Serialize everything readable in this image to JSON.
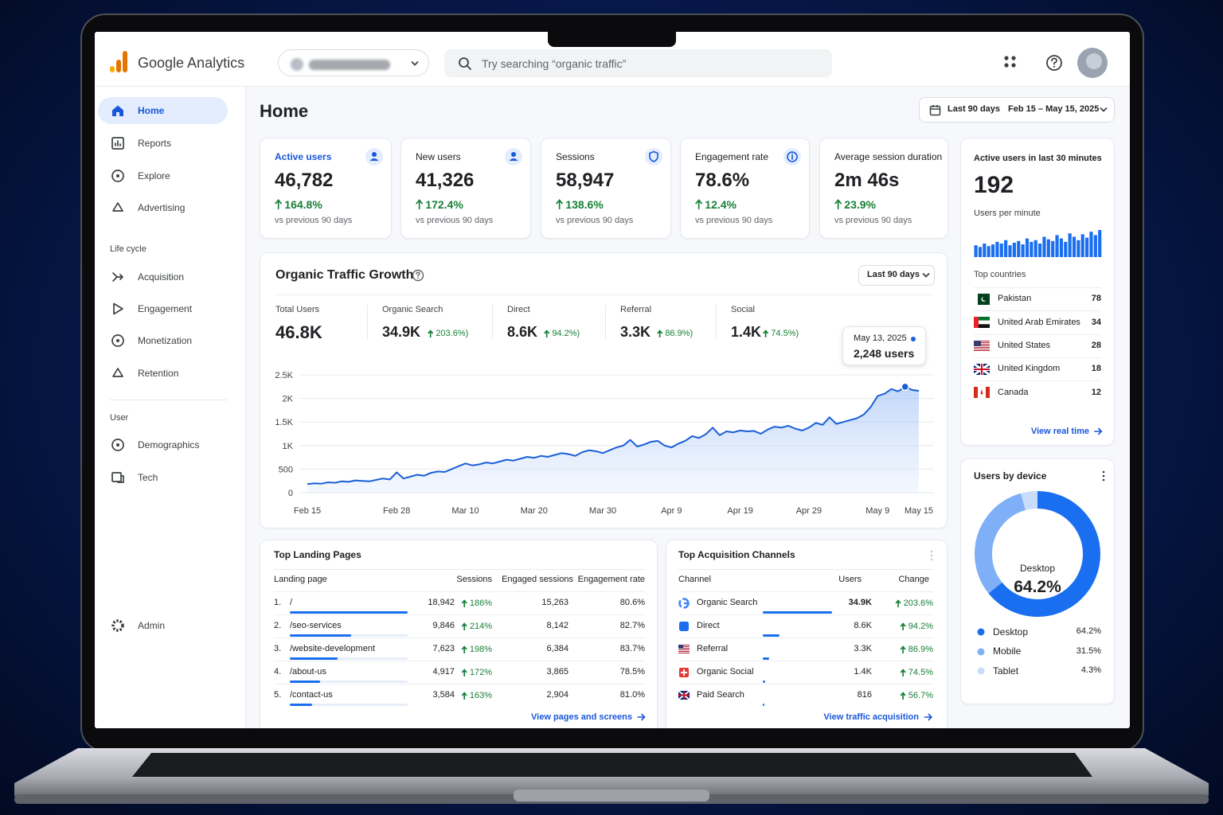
{
  "header": {
    "product": "Google Analytics",
    "search_placeholder": "Try searching “organic traffic”"
  },
  "sidebar": {
    "main": [
      "Home",
      "Reports",
      "Explore",
      "Advertising"
    ],
    "lifecycle_title": "Life cycle",
    "lifecycle": [
      "Acquisition",
      "Engagement",
      "Monetization",
      "Retention"
    ],
    "user_title": "User",
    "user": [
      "Demographics",
      "Tech"
    ],
    "admin": "Admin"
  },
  "page": {
    "title": "Home",
    "date_range": {
      "preset": "Last 90 days",
      "range": "Feb 15 – May 15, 2025"
    }
  },
  "kpis": [
    {
      "title": "Active users",
      "value": "46,782",
      "change": "164.8%",
      "note": "vs previous 90 days"
    },
    {
      "title": "New users",
      "value": "41,326",
      "change": "172.4%",
      "note": "vs previous 90 days"
    },
    {
      "title": "Sessions",
      "value": "58,947",
      "change": "138.6%",
      "note": "vs previous 90 days"
    },
    {
      "title": "Engagement rate",
      "value": "78.6%",
      "change": "12.4%",
      "note": "vs previous 90 days"
    },
    {
      "title": "Average session duration",
      "value": "2m 46s",
      "change": "23.9%",
      "note": "vs previous 90 days"
    }
  ],
  "traffic": {
    "title": "Organic Traffic Growth",
    "period": "Last 90 days",
    "metrics": [
      {
        "label": "Total Users",
        "value": "46.8K"
      },
      {
        "label": "Organic Search",
        "value": "34.9K",
        "change": "203.6%)"
      },
      {
        "label": "Direct",
        "value": "8.6K",
        "change": "94.2%)"
      },
      {
        "label": "Referral",
        "value": "3.3K",
        "change": "86.9%)"
      },
      {
        "label": "Social",
        "value": "1.4K",
        "change": "74.5%)"
      }
    ],
    "tooltip": {
      "date": "May 13, 2025",
      "label": "2,248 users"
    },
    "chart_data": {
      "type": "line",
      "categories": [
        "Feb 15",
        null,
        null,
        null,
        null,
        null,
        null,
        null,
        null,
        null,
        null,
        null,
        null,
        "Feb 28",
        null,
        null,
        null,
        null,
        null,
        null,
        null,
        null,
        null,
        "Mar 10",
        null,
        null,
        null,
        null,
        null,
        null,
        null,
        null,
        null,
        "Mar 20",
        null,
        null,
        null,
        null,
        null,
        null,
        null,
        null,
        null,
        "Mar 30",
        null,
        null,
        null,
        null,
        null,
        null,
        null,
        null,
        null,
        "Apr 9",
        null,
        null,
        null,
        null,
        null,
        null,
        null,
        null,
        null,
        "Apr 19",
        null,
        null,
        null,
        null,
        null,
        null,
        null,
        null,
        null,
        "Apr 29",
        null,
        null,
        null,
        null,
        null,
        null,
        null,
        null,
        null,
        "May 9",
        null,
        null,
        null,
        null,
        null,
        "May 15"
      ],
      "values": [
        180,
        200,
        190,
        220,
        210,
        240,
        230,
        260,
        250,
        240,
        270,
        300,
        280,
        430,
        300,
        340,
        380,
        360,
        420,
        450,
        440,
        500,
        560,
        620,
        580,
        600,
        640,
        620,
        660,
        700,
        680,
        720,
        760,
        740,
        780,
        760,
        800,
        840,
        820,
        780,
        860,
        900,
        880,
        840,
        900,
        960,
        1000,
        1120,
        980,
        1020,
        1080,
        1100,
        1000,
        960,
        1040,
        1100,
        1200,
        1160,
        1240,
        1380,
        1220,
        1300,
        1280,
        1320,
        1300,
        1310,
        1250,
        1340,
        1400,
        1380,
        1420,
        1360,
        1320,
        1380,
        1480,
        1440,
        1600,
        1460,
        1500,
        1540,
        1580,
        1660,
        1820,
        2050,
        2100,
        2200,
        2150,
        2248,
        2180,
        2160
      ],
      "color": "#1a5fd8",
      "ylim": [
        0,
        2500
      ],
      "yticks": [
        0,
        500,
        {
          "value": 1000,
          "label": "1K"
        },
        {
          "value": 1500,
          "label": "1.5K"
        },
        {
          "value": 2000,
          "label": "2K"
        },
        {
          "value": 2500,
          "label": "2.5K"
        }
      ],
      "grid": true
    }
  },
  "realtime": {
    "title": "Active users in last 30 minutes",
    "value": 192,
    "subtitle": "Users per minute",
    "chart_data": {
      "type": "bar",
      "values": [
        14,
        12,
        16,
        13,
        15,
        18,
        16,
        20,
        14,
        17,
        19,
        15,
        22,
        18,
        20,
        16,
        24,
        21,
        19,
        26,
        22,
        18,
        28,
        24,
        20,
        27,
        23,
        30,
        26,
        32
      ],
      "color": "#1a6ef0"
    },
    "countries_title": "Top countries",
    "countries": [
      {
        "name": "Pakistan",
        "users": 78
      },
      {
        "name": "United Arab Emirates",
        "users": 34
      },
      {
        "name": "United States",
        "users": 28
      },
      {
        "name": "United Kingdom",
        "users": 18
      },
      {
        "name": "Canada",
        "users": 12
      }
    ],
    "link": "View real time"
  },
  "devices": {
    "title": "Users by device",
    "chart_data": {
      "type": "pie",
      "categories": [
        "Desktop",
        "Mobile",
        "Tablet"
      ],
      "values": [
        64.2,
        31.5,
        4.3
      ],
      "value_labels": [
        "64.2%",
        "31.5%",
        "4.3%"
      ],
      "colors": [
        "#1a6ef0",
        "#7fb0f7",
        "#c9dcfb"
      ]
    }
  },
  "landing": {
    "title": "Top Landing Pages",
    "columns": [
      "Landing page",
      "Sessions",
      "Engaged sessions",
      "Engagement rate"
    ],
    "rows": [
      {
        "rank": "1.",
        "page": "/",
        "sessions": 18942,
        "sessions_label": "18,942",
        "change": "186%",
        "engaged": "15,263",
        "rate": "80.6%"
      },
      {
        "rank": "2.",
        "page": "/seo-services",
        "sessions": 9846,
        "sessions_label": "9,846",
        "change": "214%",
        "engaged": "8,142",
        "rate": "82.7%"
      },
      {
        "rank": "3.",
        "page": "/website-development",
        "sessions": 7623,
        "sessions_label": "7,623",
        "change": "198%",
        "engaged": "6,384",
        "rate": "83.7%"
      },
      {
        "rank": "4.",
        "page": "/about-us",
        "sessions": 4917,
        "sessions_label": "4,917",
        "change": "172%",
        "engaged": "3,865",
        "rate": "78.5%"
      },
      {
        "rank": "5.",
        "page": "/contact-us",
        "sessions": 3584,
        "sessions_label": "3,584",
        "change": "163%",
        "engaged": "2,904",
        "rate": "81.0%"
      }
    ],
    "link": "View pages and screens"
  },
  "channels": {
    "title": "Top Acquisition Channels",
    "columns": [
      "Channel",
      "Users",
      "Change"
    ],
    "rows": [
      {
        "name": "Organic Search",
        "users": 34900,
        "users_label": "34.9K",
        "change": "203.6%"
      },
      {
        "name": "Direct",
        "users": 8600,
        "users_label": "8.6K",
        "change": "94.2%"
      },
      {
        "name": "Referral",
        "users": 3300,
        "users_label": "3.3K",
        "change": "86.9%"
      },
      {
        "name": "Organic Social",
        "users": 1400,
        "users_label": "1.4K",
        "change": "74.5%"
      },
      {
        "name": "Paid Search",
        "users": 816,
        "users_label": "816",
        "change": "56.7%"
      }
    ],
    "link": "View traffic acquisition"
  }
}
